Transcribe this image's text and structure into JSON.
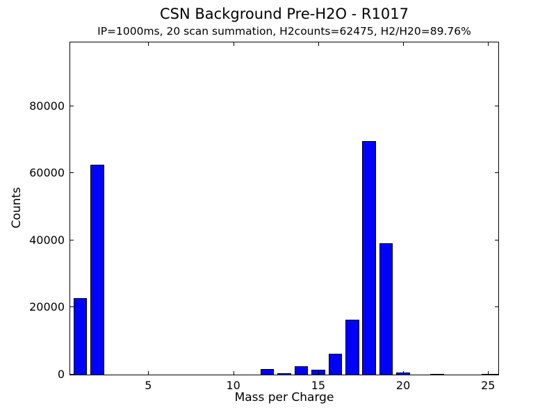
{
  "chart_data": {
    "type": "bar",
    "title": "CSN Background Pre-H2O - R1017",
    "subtitle": "IP=1000ms, 20 scan summation, H2counts=62475, H2/H20=89.76%",
    "xlabel": "Mass per Charge",
    "ylabel": "Counts",
    "x": [
      1,
      2,
      3,
      4,
      5,
      6,
      7,
      8,
      9,
      10,
      11,
      12,
      13,
      14,
      15,
      16,
      17,
      18,
      19,
      20,
      21,
      22,
      23,
      24,
      25
    ],
    "values": [
      22700,
      62475,
      0,
      0,
      0,
      0,
      0,
      0,
      0,
      0,
      0,
      1650,
      400,
      2500,
      1440,
      6200,
      16300,
      69500,
      39200,
      620,
      0,
      310,
      0,
      0,
      310
    ],
    "xticks": [
      5,
      10,
      15,
      20,
      25
    ],
    "yticks": [
      0,
      20000,
      40000,
      60000,
      80000
    ],
    "xlim": [
      0.4,
      25.6
    ],
    "ylim": [
      0,
      99000
    ],
    "bar_width": 0.8,
    "bar_color": "#0000ff",
    "bar_edge_color": "#000000",
    "axis_color": "#000000",
    "background_color": "#ffffff",
    "grid": false,
    "legend_position": "none",
    "tick_direction": "in"
  }
}
